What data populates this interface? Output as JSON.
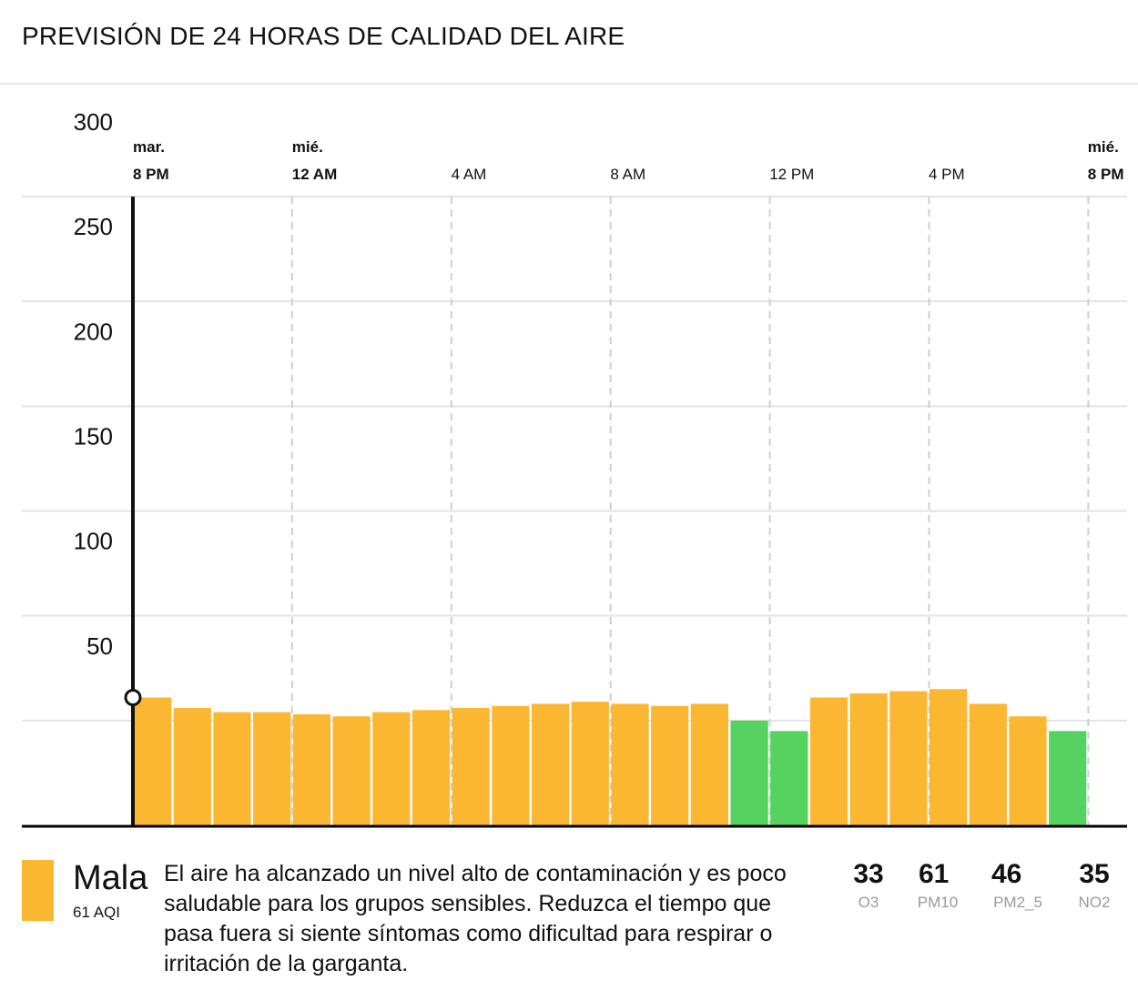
{
  "title": "PREVISIÓN DE 24 HORAS DE CALIDAD DEL AIRE",
  "chart_data": {
    "type": "bar",
    "title": "PREVISIÓN DE 24 HORAS DE CALIDAD DEL AIRE",
    "x_ticks": [
      {
        "day": "mar.",
        "time": "8 PM",
        "bold": true
      },
      {
        "day": "mié.",
        "time": "12 AM",
        "bold": true
      },
      {
        "day": "",
        "time": "4 AM",
        "bold": false
      },
      {
        "day": "",
        "time": "8 AM",
        "bold": false
      },
      {
        "day": "",
        "time": "12 PM",
        "bold": false
      },
      {
        "day": "",
        "time": "4 PM",
        "bold": false
      },
      {
        "day": "mié.",
        "time": "8 PM",
        "bold": true
      }
    ],
    "y_ticks": [
      50,
      100,
      150,
      200,
      250,
      300
    ],
    "ylim": [
      0,
      300
    ],
    "grid": true,
    "values": [
      61,
      56,
      54,
      54,
      53,
      52,
      54,
      55,
      56,
      57,
      58,
      59,
      58,
      57,
      58,
      50,
      45,
      61,
      63,
      64,
      65,
      58,
      52,
      45
    ],
    "colors": {
      "moderate": "#fbb731",
      "good": "#55d260"
    },
    "good_threshold": 50,
    "selected_index": 0
  },
  "summary": {
    "category": "Mala",
    "aqi": "61 AQI",
    "color": "#fbb731",
    "description": "El aire ha alcanzado un nivel alto de contaminación y es poco saludable para los grupos sensibles. Reduzca el tiempo que pasa fuera si siente síntomas como dificultad para respirar o irritación de la garganta.",
    "pollutants": [
      {
        "value": "33",
        "name": "O3"
      },
      {
        "value": "61",
        "name": "PM10"
      },
      {
        "value": "46",
        "name": "PM2_5"
      },
      {
        "value": "35",
        "name": "NO2"
      }
    ]
  }
}
